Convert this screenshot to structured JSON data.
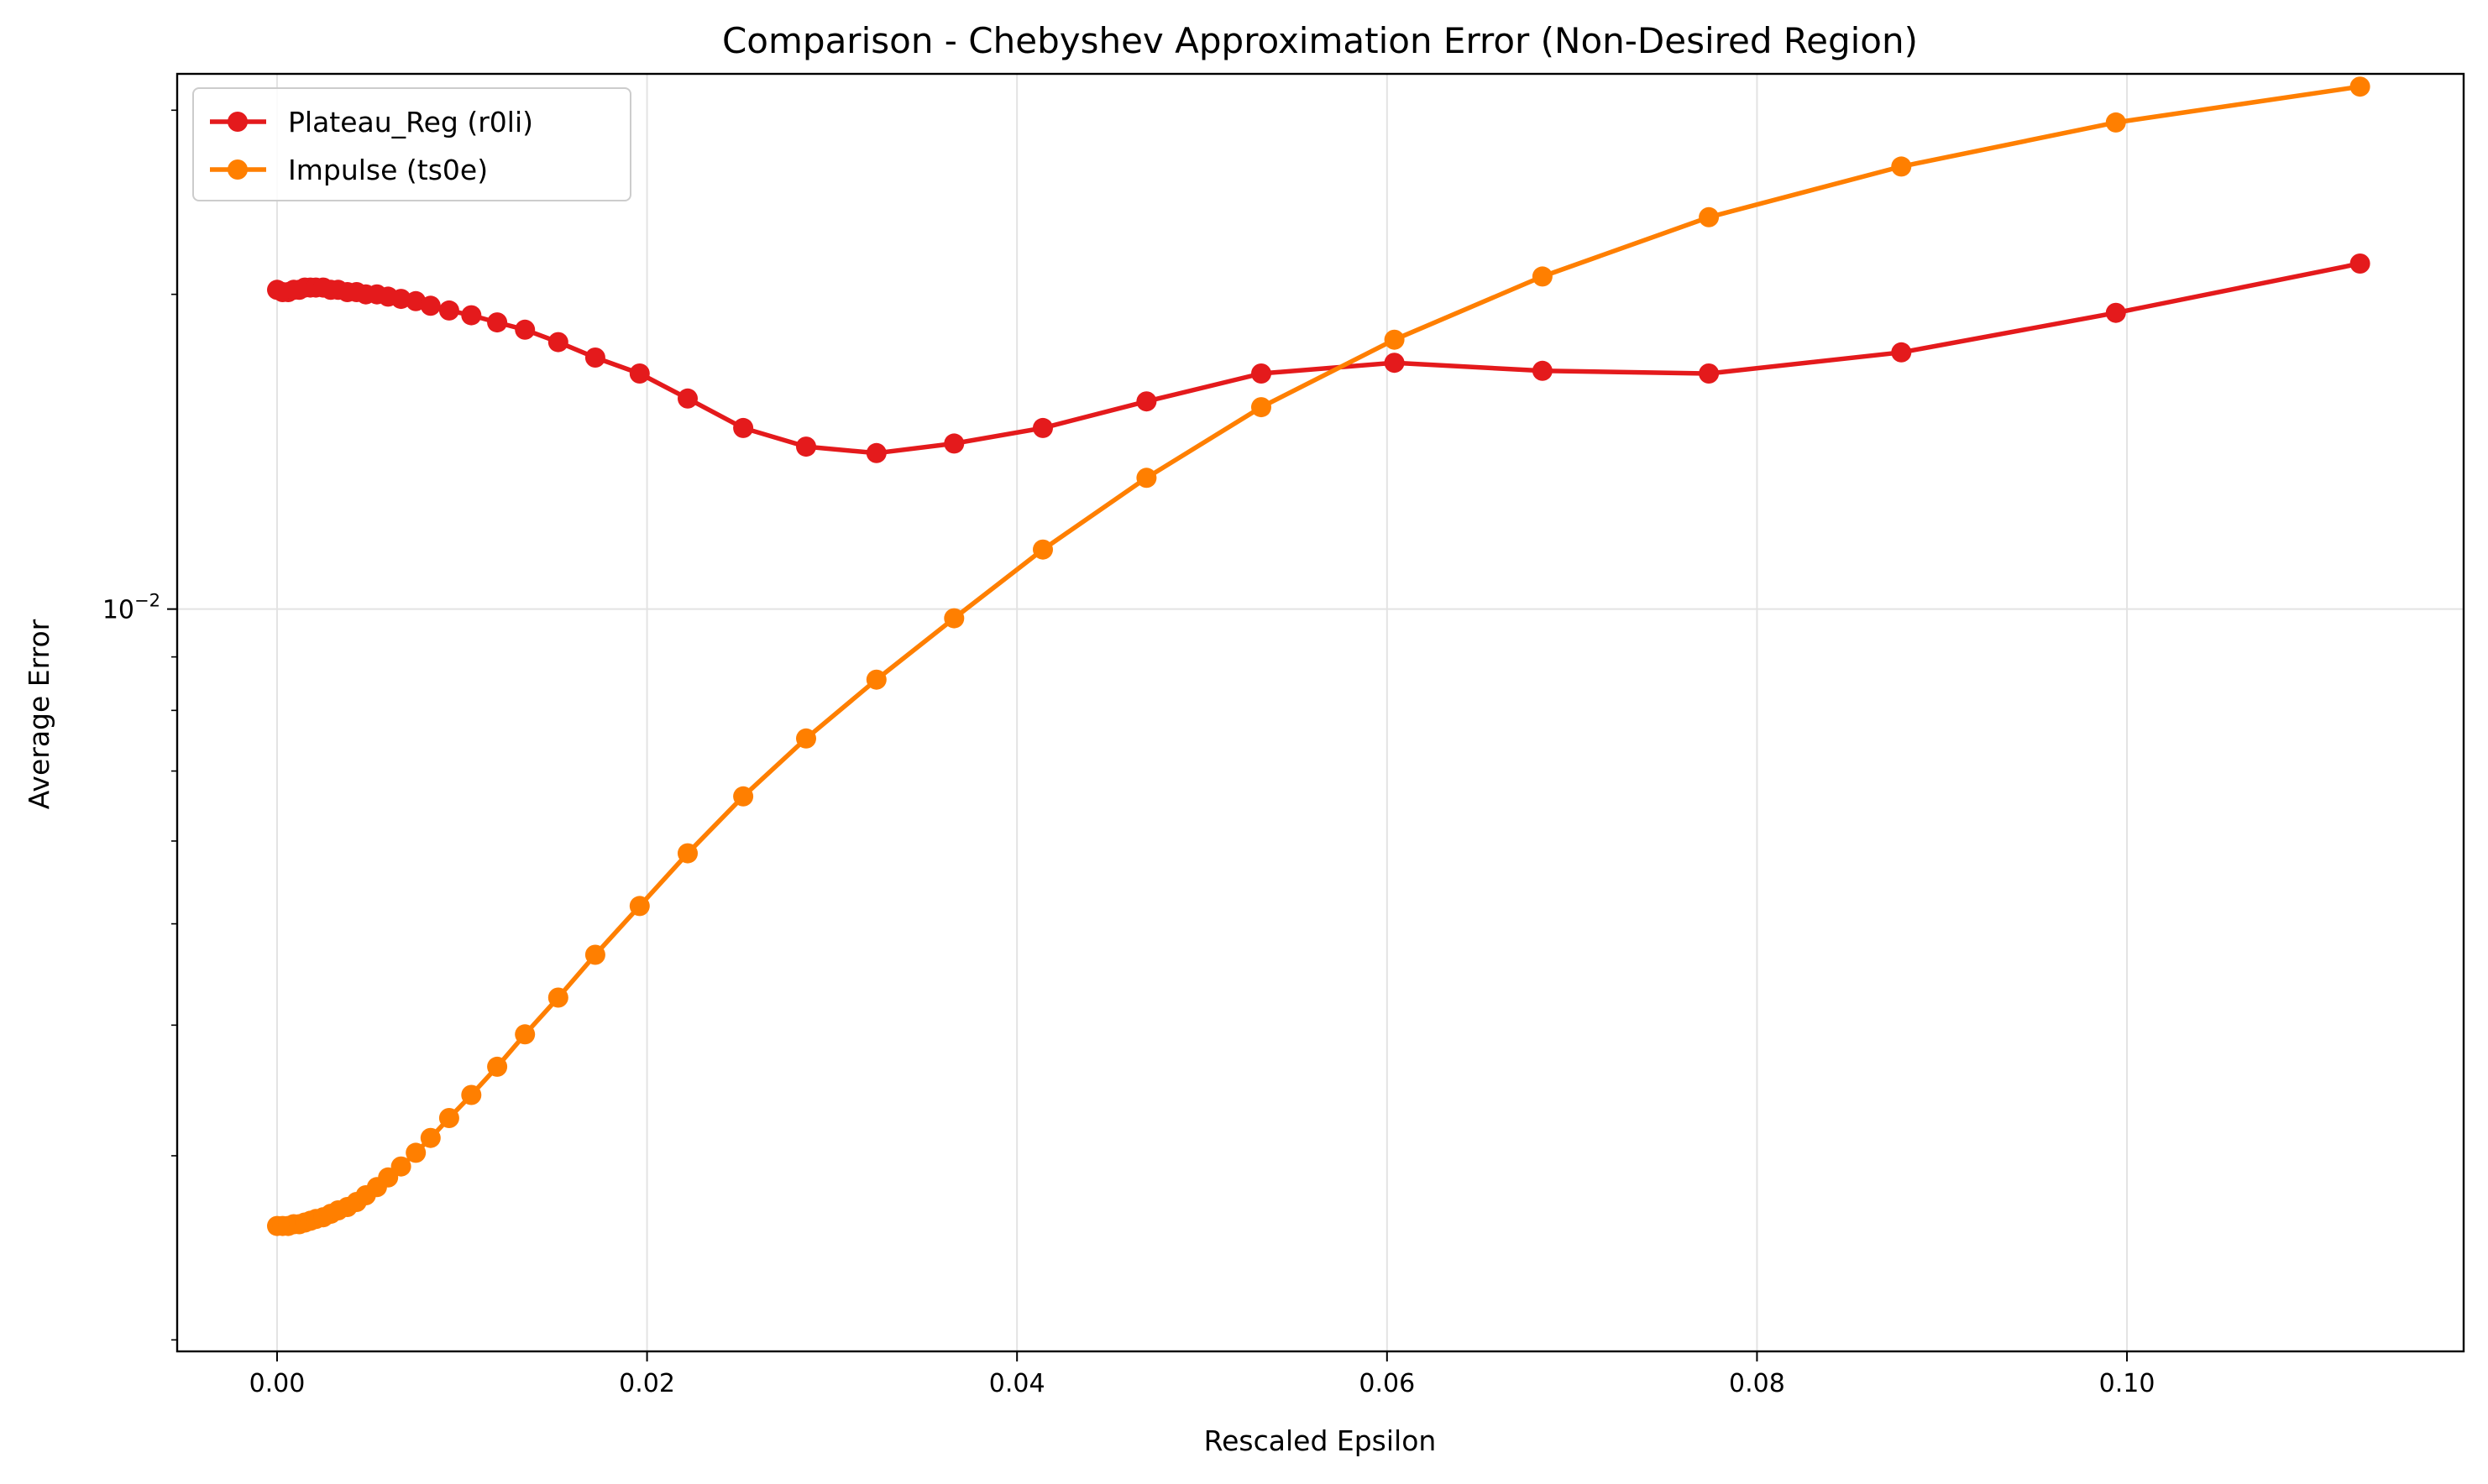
{
  "chart_data": {
    "type": "line",
    "title": "Comparison - Chebyshev Approximation Error (Non-Desired Region)",
    "xlabel": "Rescaled Epsilon",
    "ylabel": "Average Error",
    "xlim": [
      -0.0054,
      0.1182
    ],
    "ylim": [
      0.00195,
      0.0325
    ],
    "yscale": "log",
    "x_ticks": [
      0.0,
      0.02,
      0.04,
      0.06,
      0.08,
      0.1
    ],
    "x_tick_labels": [
      "0.00",
      "0.02",
      "0.04",
      "0.06",
      "0.08",
      "0.10"
    ],
    "y_ticks": [
      0.01
    ],
    "y_tick_labels": [
      {
        "base": "10",
        "exp": "−2"
      }
    ],
    "grid": true,
    "legend_position": "top-left",
    "series": [
      {
        "name": "Plateau_Reg (r0li)",
        "color": "#e41a1c",
        "x": [
          0.0,
          0.0003,
          0.0006,
          0.0009,
          0.0012,
          0.0015,
          0.0018,
          0.0021,
          0.0025,
          0.0029,
          0.0033,
          0.0038,
          0.0043,
          0.0048,
          0.0054,
          0.006,
          0.0067,
          0.0075,
          0.0083,
          0.0093,
          0.0105,
          0.0119,
          0.0134,
          0.0152,
          0.0172,
          0.0196,
          0.0222,
          0.0252,
          0.0286,
          0.0324,
          0.0366,
          0.0414,
          0.047,
          0.0532,
          0.0604,
          0.0684,
          0.0774,
          0.0878,
          0.0994,
          0.1126
        ],
        "y": [
          0.0202,
          0.0201,
          0.0201,
          0.0202,
          0.0202,
          0.0203,
          0.0203,
          0.0203,
          0.0203,
          0.0202,
          0.0202,
          0.0201,
          0.0201,
          0.02,
          0.02,
          0.0199,
          0.0198,
          0.0197,
          0.0195,
          0.0193,
          0.0191,
          0.0188,
          0.0185,
          0.018,
          0.0174,
          0.0168,
          0.0159,
          0.0149,
          0.0143,
          0.0141,
          0.0144,
          0.0149,
          0.0158,
          0.0168,
          0.0172,
          0.0169,
          0.0168,
          0.0176,
          0.0192,
          0.0214
        ]
      },
      {
        "name": "Impulse (ts0e)",
        "color": "#ff7f00",
        "x": [
          0.0,
          0.0003,
          0.0006,
          0.0009,
          0.0012,
          0.0015,
          0.0018,
          0.0021,
          0.0025,
          0.0029,
          0.0033,
          0.0038,
          0.0043,
          0.0048,
          0.0054,
          0.006,
          0.0067,
          0.0075,
          0.0083,
          0.0093,
          0.0105,
          0.0119,
          0.0134,
          0.0152,
          0.0172,
          0.0196,
          0.0222,
          0.0252,
          0.0286,
          0.0324,
          0.0366,
          0.0414,
          0.047,
          0.0532,
          0.0604,
          0.0684,
          0.0774,
          0.0878,
          0.0994,
          0.1126
        ],
        "y": [
          0.00257,
          0.00257,
          0.00257,
          0.00258,
          0.00258,
          0.00259,
          0.0026,
          0.00261,
          0.00262,
          0.00264,
          0.00266,
          0.00268,
          0.00271,
          0.00275,
          0.0028,
          0.00286,
          0.00293,
          0.00302,
          0.00312,
          0.00326,
          0.00343,
          0.00365,
          0.00392,
          0.00425,
          0.00467,
          0.0052,
          0.00584,
          0.00662,
          0.00752,
          0.00856,
          0.0098,
          0.0114,
          0.01335,
          0.0156,
          0.0181,
          0.0208,
          0.0237,
          0.0265,
          0.0292,
          0.0316
        ]
      }
    ]
  }
}
